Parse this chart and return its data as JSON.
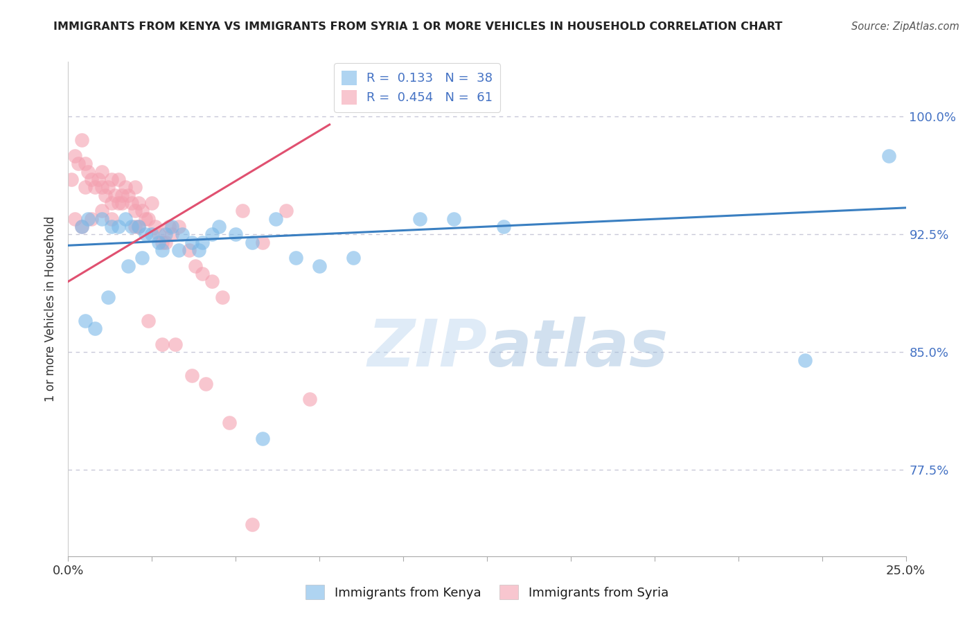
{
  "title": "IMMIGRANTS FROM KENYA VS IMMIGRANTS FROM SYRIA 1 OR MORE VEHICLES IN HOUSEHOLD CORRELATION CHART",
  "source": "Source: ZipAtlas.com",
  "ylabel": "1 or more Vehicles in Household",
  "xlim": [
    0.0,
    25.0
  ],
  "ylim": [
    72.0,
    103.5
  ],
  "yticks": [
    77.5,
    85.0,
    92.5,
    100.0
  ],
  "yticklabels": [
    "77.5%",
    "85.0%",
    "92.5%",
    "100.0%"
  ],
  "kenya_color": "#7ab8e8",
  "syria_color": "#f4a0b0",
  "kenya_R": 0.133,
  "kenya_N": 38,
  "syria_R": 0.454,
  "syria_N": 61,
  "kenya_scatter_x": [
    0.4,
    0.6,
    1.0,
    1.3,
    1.5,
    1.7,
    1.9,
    2.1,
    2.3,
    2.5,
    2.7,
    2.9,
    3.1,
    3.4,
    3.7,
    4.0,
    4.5,
    5.0,
    5.5,
    6.2,
    6.8,
    7.5,
    8.5,
    10.5,
    11.5,
    13.0,
    0.5,
    0.8,
    1.2,
    1.8,
    2.2,
    2.8,
    3.3,
    3.9,
    4.3,
    5.8,
    22.0,
    24.5
  ],
  "kenya_scatter_y": [
    93.0,
    93.5,
    93.5,
    93.0,
    93.0,
    93.5,
    93.0,
    93.0,
    92.5,
    92.5,
    92.0,
    92.5,
    93.0,
    92.5,
    92.0,
    92.0,
    93.0,
    92.5,
    92.0,
    93.5,
    91.0,
    90.5,
    91.0,
    93.5,
    93.5,
    93.0,
    87.0,
    86.5,
    88.5,
    90.5,
    91.0,
    91.5,
    91.5,
    91.5,
    92.5,
    79.5,
    84.5,
    97.5
  ],
  "syria_scatter_x": [
    0.1,
    0.2,
    0.3,
    0.4,
    0.5,
    0.5,
    0.6,
    0.7,
    0.8,
    0.9,
    1.0,
    1.0,
    1.1,
    1.2,
    1.3,
    1.3,
    1.4,
    1.5,
    1.5,
    1.6,
    1.7,
    1.8,
    1.9,
    2.0,
    2.0,
    2.1,
    2.1,
    2.2,
    2.3,
    2.4,
    2.5,
    2.6,
    2.7,
    2.8,
    2.9,
    3.0,
    3.1,
    3.3,
    3.6,
    3.8,
    4.0,
    4.3,
    4.6,
    5.2,
    5.8,
    6.5,
    7.2,
    0.2,
    0.4,
    0.7,
    1.0,
    1.3,
    1.6,
    2.0,
    2.4,
    2.8,
    3.2,
    3.7,
    4.1,
    4.8,
    5.5
  ],
  "syria_scatter_y": [
    96.0,
    97.5,
    97.0,
    98.5,
    95.5,
    97.0,
    96.5,
    96.0,
    95.5,
    96.0,
    95.5,
    96.5,
    95.0,
    95.5,
    96.0,
    94.5,
    95.0,
    94.5,
    96.0,
    95.0,
    95.5,
    95.0,
    94.5,
    95.5,
    94.0,
    94.5,
    93.0,
    94.0,
    93.5,
    93.5,
    94.5,
    93.0,
    92.5,
    92.0,
    92.0,
    93.0,
    92.5,
    93.0,
    91.5,
    90.5,
    90.0,
    89.5,
    88.5,
    94.0,
    92.0,
    94.0,
    82.0,
    93.5,
    93.0,
    93.5,
    94.0,
    93.5,
    94.5,
    93.0,
    87.0,
    85.5,
    85.5,
    83.5,
    83.0,
    80.5,
    74.0
  ],
  "kenya_trend_x": [
    0.0,
    25.0
  ],
  "kenya_trend_y": [
    91.8,
    94.2
  ],
  "syria_trend_x": [
    0.0,
    7.8
  ],
  "syria_trend_y": [
    89.5,
    99.5
  ],
  "kenya_line_color": "#3a7fc1",
  "syria_line_color": "#e05070",
  "background_color": "#ffffff",
  "grid_color": "#c8c8d8",
  "title_color": "#222222",
  "source_color": "#555555",
  "legend_label_kenya": "Immigrants from Kenya",
  "legend_label_syria": "Immigrants from Syria",
  "watermark1": "ZIP",
  "watermark2": "atlas",
  "right_tick_color": "#4472c4",
  "bottom_label_color": "#1a1a1a"
}
